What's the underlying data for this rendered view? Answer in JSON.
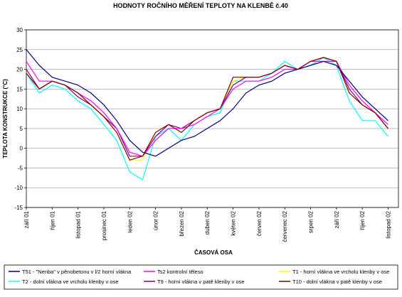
{
  "chart_data": {
    "type": "line",
    "title": "HODNOTY ROČNÍHO MĚŘENÍ TEPLOTY NA KLENBĚ č.40",
    "y_label": "TEPLOTA KONSTRUKCE (°C)",
    "x_label": "ČASOVÁ OSA",
    "x": [
      0,
      0.5,
      1,
      1.5,
      2,
      2.5,
      3,
      3.5,
      4,
      4.5,
      5,
      5.5,
      6,
      6.5,
      7,
      7.5,
      8,
      8.5,
      9,
      9.5,
      10,
      10.5,
      11,
      11.5,
      12,
      12.5,
      13,
      13.5,
      14
    ],
    "xlim": [
      0,
      14.4
    ],
    "xticks": [
      {
        "value": 0,
        "label": "září 01"
      },
      {
        "value": 1,
        "label": "říjen 01"
      },
      {
        "value": 2,
        "label": "listopad 01"
      },
      {
        "value": 3,
        "label": "prosinec 01"
      },
      {
        "value": 4,
        "label": "leden 02"
      },
      {
        "value": 5,
        "label": "únor 02"
      },
      {
        "value": 6,
        "label": "březen 02"
      },
      {
        "value": 7,
        "label": "duben 02"
      },
      {
        "value": 8,
        "label": "květen 02"
      },
      {
        "value": 9,
        "label": "červen 02"
      },
      {
        "value": 10,
        "label": "červenec 02"
      },
      {
        "value": 11,
        "label": "srpen 02"
      },
      {
        "value": 12,
        "label": "září 02"
      },
      {
        "value": 13,
        "label": "říjen 02"
      },
      {
        "value": 14,
        "label": "listopad 02"
      }
    ],
    "ylim": [
      -15,
      30
    ],
    "yticks": [
      -15,
      -10,
      -5,
      0,
      5,
      10,
      15,
      20,
      25,
      30
    ],
    "grid": true,
    "series": [
      {
        "name": "T51 - \"Nenba\" v pěnobetonu v l/2 horní vlákna",
        "color": "#000080",
        "values": [
          25,
          21,
          18,
          17,
          16,
          14,
          11,
          7,
          2,
          -1,
          -2,
          0,
          2,
          3,
          5,
          7,
          10,
          14,
          16,
          17,
          19,
          20,
          21,
          22,
          21,
          17,
          13,
          10,
          7
        ]
      },
      {
        "name": "Ts2 kontrolní těleso",
        "color": "#ff00ff",
        "values": [
          22,
          17,
          17,
          16,
          14,
          12,
          9,
          5,
          -1,
          -2,
          2,
          5,
          5,
          6,
          8,
          10,
          15,
          17,
          17,
          18,
          20,
          20,
          22,
          22,
          22,
          16,
          12,
          9,
          6
        ]
      },
      {
        "name": "T1 - horní vlákna ve vrcholu klenby v ose",
        "color": "#ffff00",
        "values": [
          20,
          15,
          17,
          16,
          13,
          11,
          8,
          4,
          -3,
          -3,
          4,
          6,
          4,
          7,
          9,
          10,
          17,
          18,
          18,
          19,
          21,
          20,
          22,
          23,
          22,
          14,
          11,
          9,
          5
        ]
      },
      {
        "name": "T2 - dolní vlákna ve vrcholu klenby v ose",
        "color": "#00ffff",
        "values": [
          19,
          14,
          16,
          15,
          12,
          10,
          6,
          2,
          -6,
          -8,
          3,
          5,
          2,
          6,
          8,
          9,
          17,
          17,
          17,
          19,
          22,
          20,
          21,
          23,
          21,
          12,
          7,
          7,
          3
        ]
      },
      {
        "name": "T9 - horní vlákna v patě klenby v ose",
        "color": "#800080",
        "values": [
          20,
          15,
          17,
          16,
          13,
          11,
          8,
          5,
          -2,
          -2,
          3,
          6,
          5,
          7,
          9,
          10,
          16,
          18,
          18,
          19,
          21,
          20,
          22,
          23,
          22,
          15,
          11,
          9,
          5
        ]
      },
      {
        "name": "T10 - dolní vlákna v patě klenby v ose",
        "color": "#800000",
        "values": [
          19,
          15,
          17,
          16,
          14,
          11,
          8,
          4,
          -3,
          -2,
          4,
          6,
          4,
          7,
          9,
          10,
          18,
          18,
          18,
          19,
          21,
          20,
          22,
          23,
          22,
          14,
          11,
          9,
          5
        ]
      }
    ]
  }
}
